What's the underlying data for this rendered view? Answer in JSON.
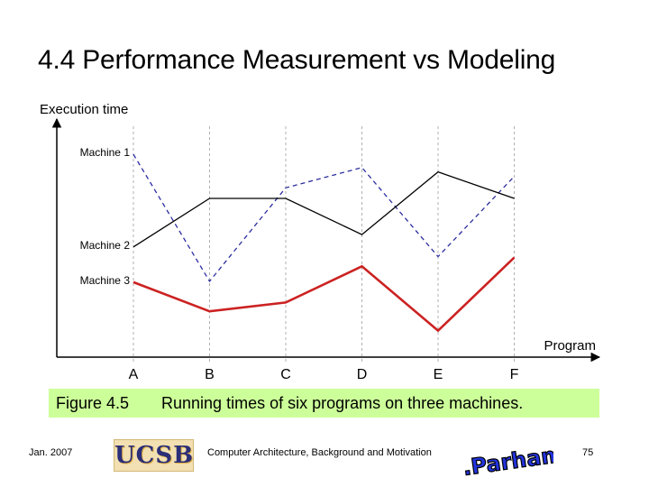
{
  "slide": {
    "title": "4.4  Performance Measurement vs Modeling"
  },
  "caption": {
    "figure": "Figure 4.5",
    "text": "Running times of six programs on three machines."
  },
  "footer": {
    "date": "Jan. 2007",
    "center": "Computer Architecture, Background and Motivation",
    "page": "75",
    "logo_ucsb": "UCSB",
    "logo_author": "B. Parhami"
  },
  "chart_data": {
    "type": "line",
    "ylabel": "Execution time",
    "xlabel": "Program",
    "categories": [
      "A",
      "B",
      "C",
      "D",
      "E",
      "F"
    ],
    "ylim": [
      0,
      270
    ],
    "series": [
      {
        "name": "Machine 1",
        "color": "#2b2e9e",
        "style": "dashed",
        "values": [
          230,
          86,
          192,
          215,
          114,
          205
        ]
      },
      {
        "name": "Machine 2",
        "color": "#000000",
        "style": "solid",
        "values": [
          125,
          180,
          180,
          139,
          210,
          180
        ]
      },
      {
        "name": "Machine 3",
        "color": "#cc2222",
        "style": "solid",
        "values": [
          85,
          52,
          62,
          103,
          30,
          113
        ]
      }
    ],
    "grid": "vertical-dashed"
  }
}
